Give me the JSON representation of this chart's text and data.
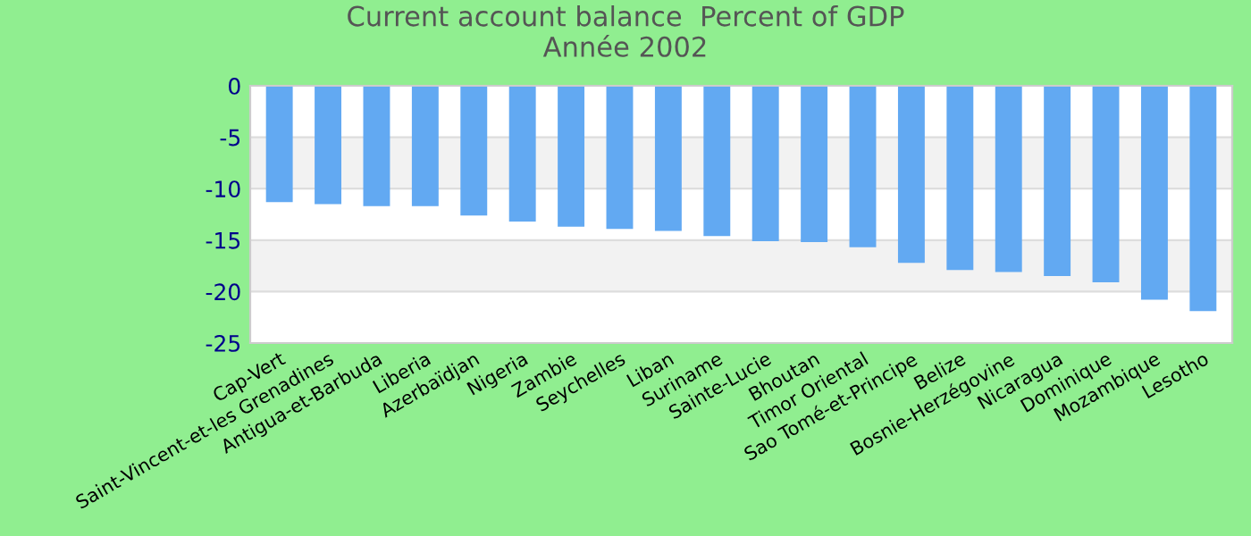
{
  "chart_data": {
    "type": "bar",
    "title": "Current account balance  Percent of GDP\nAnnée 2002",
    "categories": [
      "Cap-Vert",
      "Saint-Vincent-et-les Grenadines",
      "Antigua-et-Barbuda",
      "Liberia",
      "Azerbaïdjan",
      "Nigeria",
      "Zambie",
      "Seychelles",
      "Liban",
      "Suriname",
      "Sainte-Lucie",
      "Bhoutan",
      "Timor Oriental",
      "Sao Tomé-et-Principe",
      "Belize",
      "Bosnie-Herzégovine",
      "Nicaragua",
      "Dominique",
      "Mozambique",
      "Lesotho"
    ],
    "values": [
      -11.3,
      -11.5,
      -11.7,
      -11.7,
      -12.6,
      -13.2,
      -13.7,
      -13.9,
      -14.1,
      -14.6,
      -15.1,
      -15.2,
      -15.7,
      -17.2,
      -17.9,
      -18.1,
      -18.5,
      -19.1,
      -20.8,
      -21.9
    ],
    "color": "#62a9f2",
    "ylim": [
      -25,
      0
    ],
    "yticks": [
      -25,
      -20,
      -15,
      -10,
      -5,
      0
    ],
    "grid": "y"
  }
}
